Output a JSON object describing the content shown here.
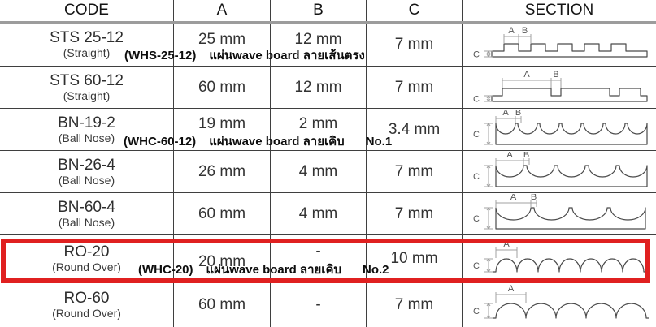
{
  "colors": {
    "highlight_red": "#e02020",
    "grid_line": "#3f3f3f",
    "header_separator_gray": "#9c9c9c"
  },
  "table": {
    "headers": [
      "CODE",
      "A",
      "B",
      "C",
      "SECTION"
    ],
    "rows": [
      {
        "code": "STS 25-12",
        "code_sub": "(Straight)",
        "a": "25 mm",
        "b": "12 mm",
        "c": "7 mm",
        "section": {
          "type": "slat-narrow",
          "labels": {
            "a": "A",
            "b": "B",
            "c": "C"
          }
        }
      },
      {
        "code": "STS 60-12",
        "code_sub": "(Straight)",
        "a": "60 mm",
        "b": "12 mm",
        "c": "7 mm",
        "section": {
          "type": "slat-wide",
          "labels": {
            "a": "A",
            "b": "B",
            "c": "C"
          }
        }
      },
      {
        "code": "BN-19-2",
        "code_sub": "(Ball Nose)",
        "a": "19 mm",
        "b": "2 mm",
        "c": "3.4 mm",
        "section": {
          "type": "cove-7",
          "labels": {
            "a": "A",
            "b": "B",
            "c": "C"
          }
        }
      },
      {
        "code": "BN-26-4",
        "code_sub": "(Ball Nose)",
        "a": "26 mm",
        "b": "4 mm",
        "c": "7 mm",
        "section": {
          "type": "cove-5",
          "labels": {
            "a": "A",
            "b": "B",
            "c": "C"
          }
        }
      },
      {
        "code": "BN-60-4",
        "code_sub": "(Ball Nose)",
        "a": "60 mm",
        "b": "4 mm",
        "c": "7 mm",
        "section": {
          "type": "cove-4",
          "labels": {
            "a": "A",
            "b": "B",
            "c": "C"
          }
        }
      },
      {
        "code": "RO-20",
        "code_sub": "(Round Over)",
        "a": "20 mm",
        "b": "-",
        "c": "10 mm",
        "section": {
          "type": "dome-7",
          "labels": {
            "a": "A",
            "c": "C"
          }
        },
        "highlighted": true
      },
      {
        "code": "RO-60",
        "code_sub": "(Round Over)",
        "a": "60 mm",
        "b": "-",
        "c": "7 mm",
        "section": {
          "type": "dome-5",
          "labels": {
            "a": "A",
            "c": "C"
          }
        }
      }
    ],
    "annotations": [
      {
        "row_index": 0,
        "code_label": "(WHS-25-12)",
        "thai_label": "แผ่นwave board ลายเส้นตรง",
        "no_label": ""
      },
      {
        "row_index": 2,
        "code_label": "(WHC-60-12)",
        "thai_label": "แผ่นwave board ลายเคิบ",
        "no_label": "No.1"
      },
      {
        "row_index": 5,
        "code_label": "(WHC-20)",
        "thai_label": "แผ่นwave board ลายเคิบ",
        "no_label": "No.2"
      }
    ],
    "highlight": {
      "row_code": "RO-20",
      "color": "#e02020"
    }
  }
}
